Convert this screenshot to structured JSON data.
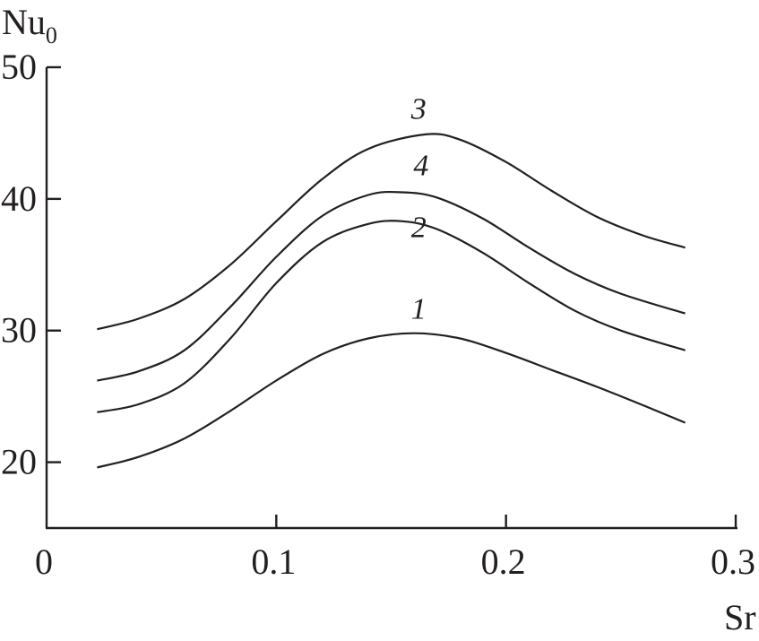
{
  "chart_data": {
    "type": "line",
    "xlabel": "Sr",
    "ylabel": "Nu",
    "ylabel_subscript": "0",
    "xlim": [
      0,
      0.3
    ],
    "ylim": [
      15,
      50
    ],
    "x_ticks": [
      0,
      0.1,
      0.2,
      0.3
    ],
    "x_tick_labels": [
      "0",
      "0.1",
      "0.2",
      "0.3"
    ],
    "y_ticks": [
      20,
      30,
      40,
      50
    ],
    "y_tick_labels": [
      "20",
      "30",
      "40",
      "50"
    ],
    "grid": false,
    "legend": "none",
    "series": [
      {
        "name": "1",
        "x": [
          0.022,
          0.04,
          0.06,
          0.08,
          0.1,
          0.12,
          0.14,
          0.16,
          0.18,
          0.2,
          0.22,
          0.24,
          0.26,
          0.278
        ],
        "y": [
          19.6,
          20.4,
          21.8,
          23.9,
          26.2,
          28.2,
          29.4,
          29.8,
          29.4,
          28.3,
          27.0,
          25.7,
          24.3,
          23.0
        ]
      },
      {
        "name": "2",
        "x": [
          0.022,
          0.04,
          0.06,
          0.08,
          0.1,
          0.12,
          0.14,
          0.155,
          0.17,
          0.19,
          0.21,
          0.23,
          0.25,
          0.278
        ],
        "y": [
          23.8,
          24.4,
          26.0,
          29.4,
          33.6,
          36.7,
          38.1,
          38.3,
          37.7,
          35.9,
          33.6,
          31.5,
          30.0,
          28.5
        ]
      },
      {
        "name": "3",
        "x": [
          0.022,
          0.04,
          0.06,
          0.08,
          0.1,
          0.12,
          0.14,
          0.165,
          0.18,
          0.2,
          0.22,
          0.24,
          0.26,
          0.278
        ],
        "y": [
          30.1,
          30.9,
          32.4,
          35.0,
          38.3,
          41.5,
          43.8,
          44.9,
          44.5,
          42.8,
          40.6,
          38.6,
          37.2,
          36.3
        ]
      },
      {
        "name": "4",
        "x": [
          0.022,
          0.04,
          0.06,
          0.08,
          0.1,
          0.12,
          0.14,
          0.155,
          0.17,
          0.19,
          0.21,
          0.23,
          0.25,
          0.278
        ],
        "y": [
          26.2,
          26.9,
          28.5,
          31.8,
          35.6,
          38.7,
          40.3,
          40.5,
          40.1,
          38.5,
          36.3,
          34.3,
          32.8,
          31.3
        ]
      }
    ],
    "annotations": [
      {
        "text": "3",
        "series": "3",
        "x": 0.162,
        "y": 46.1
      },
      {
        "text": "4",
        "series": "4",
        "x": 0.163,
        "y": 41.8
      },
      {
        "text": "2",
        "series": "2",
        "x": 0.162,
        "y": 37.1
      },
      {
        "text": "1",
        "series": "1",
        "x": 0.162,
        "y": 30.9
      }
    ]
  }
}
